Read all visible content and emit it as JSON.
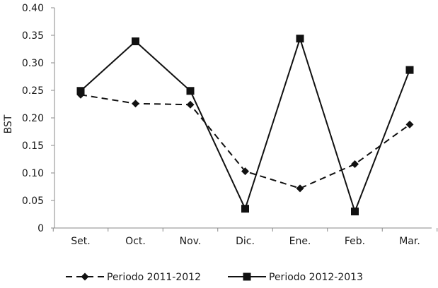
{
  "chart_data": {
    "type": "line",
    "title": "",
    "xlabel": "",
    "ylabel": "BST",
    "ylim": [
      0,
      0.4
    ],
    "y_ticks": [
      "0",
      "0.05",
      "0.10",
      "0.15",
      "0.20",
      "0.25",
      "0.30",
      "0.35",
      "0.40"
    ],
    "categories": [
      "Set.",
      "Oct.",
      "Nov.",
      "Dic.",
      "Ene.",
      "Feb.",
      "Mar."
    ],
    "grid": false,
    "legend_position": "bottom",
    "series": [
      {
        "name": "Periodo 2011-2012",
        "values": [
          0.242,
          0.226,
          0.224,
          0.103,
          0.072,
          0.116,
          0.188
        ],
        "line_style": "dashed",
        "marker": "diamond",
        "color": "#111111"
      },
      {
        "name": "Periodo 2012-2013",
        "values": [
          0.249,
          0.339,
          0.249,
          0.035,
          0.344,
          0.03,
          0.287
        ],
        "line_style": "solid",
        "marker": "square",
        "color": "#111111"
      }
    ]
  }
}
